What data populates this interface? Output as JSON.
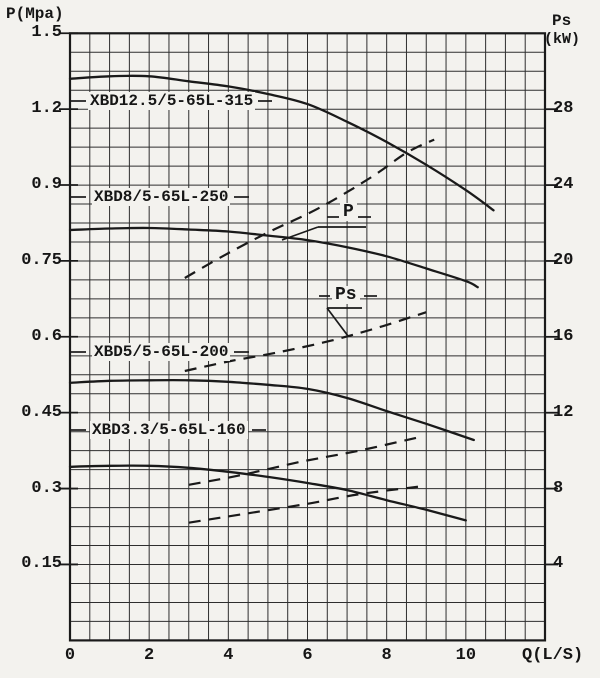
{
  "titles": {
    "left_axis": "P(Mpa)",
    "right_axis_line1": "Ps",
    "right_axis_line2": "(kW)",
    "x_axis": "Q(L/S)"
  },
  "annotations": {
    "p_label": "P",
    "ps_label": "Ps"
  },
  "colors": {
    "ink": "#1a1a1a",
    "grid": "#2e2e2e",
    "paper": "#f3f2ee"
  },
  "chart_data": {
    "type": "line",
    "xlabel": "Q(L/S)",
    "ylabel_left": "P(Mpa)",
    "ylabel_right": "Ps(kW)",
    "x_range": [
      0,
      12
    ],
    "x_ticks": [
      0,
      2,
      4,
      6,
      8,
      10
    ],
    "p_axis_ticks": [
      1.5,
      1.2,
      0.9,
      0.75,
      0.6,
      0.45,
      0.3,
      0.15
    ],
    "ps_axis_ticks": [
      28,
      24,
      20,
      16,
      12,
      8,
      4
    ],
    "grid": {
      "cols": 24,
      "rows": 32
    },
    "axis_note": "left P axis is segmented: 0.3 MPa per major division above 0.9, 0.15 MPa per major division below 0.9",
    "pumps": [
      {
        "name": "XBD12.5/5-65L-315",
        "p_curve": [
          [
            0,
            1.32
          ],
          [
            1,
            1.33
          ],
          [
            2,
            1.33
          ],
          [
            3,
            1.31
          ],
          [
            4,
            1.29
          ],
          [
            5,
            1.26
          ],
          [
            6,
            1.22
          ],
          [
            7,
            1.15
          ],
          [
            8,
            1.07
          ],
          [
            9,
            0.98
          ],
          [
            10,
            0.89
          ],
          [
            10.7,
            0.85
          ]
        ],
        "ps_curve": [
          [
            2.9,
            19.1
          ],
          [
            3.9,
            20.3
          ],
          [
            5,
            21.5
          ],
          [
            6.3,
            22.8
          ],
          [
            7.6,
            24.4
          ],
          [
            8.5,
            25.7
          ],
          [
            9.2,
            26.4
          ]
        ]
      },
      {
        "name": "XBD8/5-65L-250",
        "p_curve": [
          [
            0,
            0.811
          ],
          [
            1,
            0.814
          ],
          [
            2,
            0.815
          ],
          [
            3,
            0.812
          ],
          [
            4,
            0.808
          ],
          [
            5,
            0.8
          ],
          [
            6,
            0.791
          ],
          [
            7,
            0.777
          ],
          [
            8,
            0.759
          ],
          [
            9,
            0.735
          ],
          [
            10,
            0.71
          ],
          [
            10.3,
            0.698
          ]
        ],
        "ps_curve": [
          [
            2.9,
            14.2
          ],
          [
            4,
            14.7
          ],
          [
            5.3,
            15.2
          ],
          [
            6.6,
            15.8
          ],
          [
            7.8,
            16.5
          ],
          [
            9,
            17.3
          ]
        ]
      },
      {
        "name": "XBD5/5-65L-200",
        "p_curve": [
          [
            0,
            0.509
          ],
          [
            1,
            0.513
          ],
          [
            2,
            0.514
          ],
          [
            3,
            0.514
          ],
          [
            4,
            0.511
          ],
          [
            5,
            0.505
          ],
          [
            6,
            0.497
          ],
          [
            7,
            0.479
          ],
          [
            8,
            0.453
          ],
          [
            9,
            0.428
          ],
          [
            10.2,
            0.396
          ]
        ],
        "ps_curve": [
          [
            3,
            8.2
          ],
          [
            4.3,
            8.7
          ],
          [
            5.8,
            9.4
          ],
          [
            7.3,
            10
          ],
          [
            8.8,
            10.7
          ]
        ]
      },
      {
        "name": "XBD3.3/5-65L-160",
        "p_curve": [
          [
            0,
            0.343
          ],
          [
            1,
            0.345
          ],
          [
            2,
            0.345
          ],
          [
            3,
            0.341
          ],
          [
            4,
            0.333
          ],
          [
            5,
            0.323
          ],
          [
            6,
            0.311
          ],
          [
            7,
            0.297
          ],
          [
            8,
            0.277
          ],
          [
            9,
            0.258
          ],
          [
            10,
            0.237
          ]
        ],
        "ps_curve": [
          [
            3,
            6.2
          ],
          [
            4.5,
            6.7
          ],
          [
            6,
            7.2
          ],
          [
            7.3,
            7.7
          ],
          [
            8.8,
            8.1
          ]
        ]
      }
    ]
  }
}
